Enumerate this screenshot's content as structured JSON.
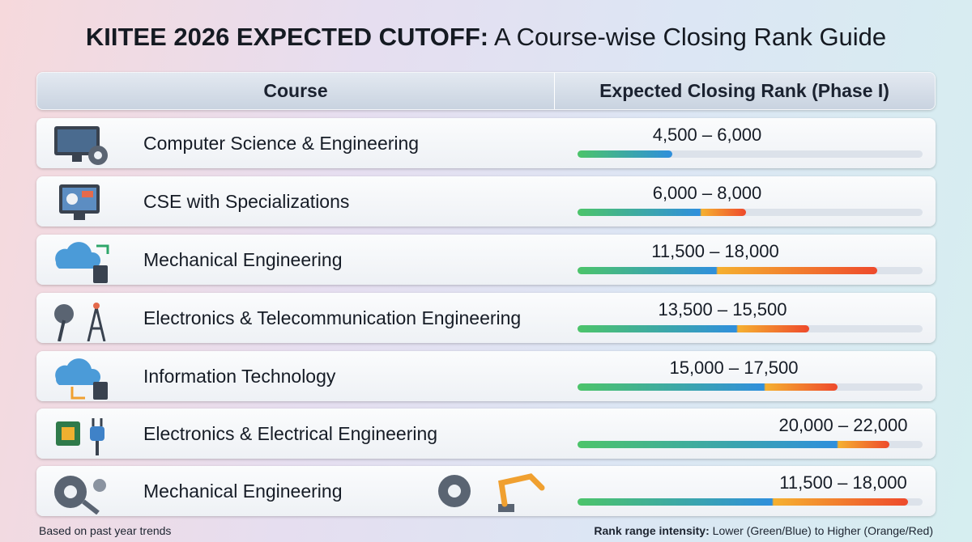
{
  "header": {
    "title_bold": "KIITEE 2026 EXPECTED CUTOFF:",
    "title_rest": "A Course-wise Closing Rank Guide"
  },
  "table": {
    "columns": [
      "Course",
      "Expected Closing Rank (Phase I)"
    ],
    "rows": [
      [
        "Computer Science & Engineering",
        "4,500 – 6,000"
      ],
      [
        "CSE with Specializations",
        "6,000 – 8,000"
      ],
      [
        "Mechanical Engineering",
        "11,500 – 18,000"
      ],
      [
        "Electronics & Telecommunication Engineering",
        "13,500 – 15,500"
      ],
      [
        "Information Technology",
        "15,000 – 17,500"
      ],
      [
        "Electronics & Electrical Engineering",
        "20,000 – 22,000"
      ],
      [
        "Mechanical Engineering",
        "11,500 – 18,000"
      ]
    ]
  },
  "footer": {
    "note": "Based on past year trends",
    "legend_bold": "Rank range intensity:",
    "legend_text": "Lower (Green/Blue) to Higher (Orange/Red)"
  }
}
